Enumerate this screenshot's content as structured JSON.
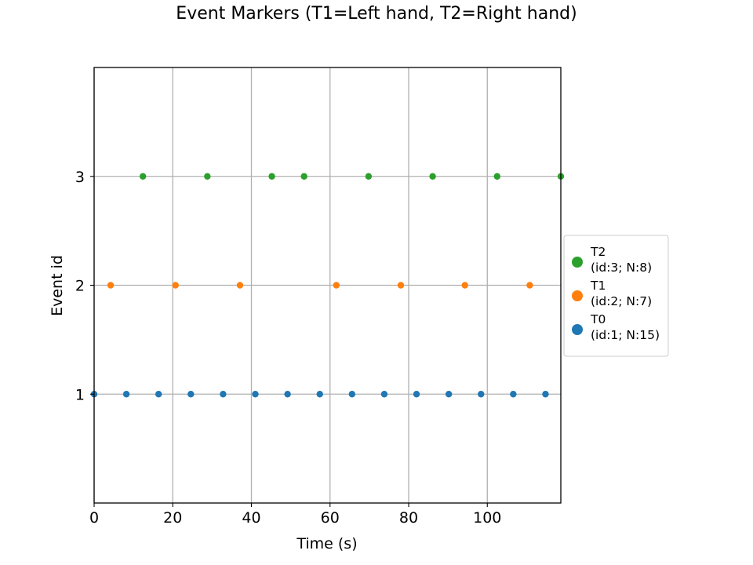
{
  "chart_data": {
    "type": "scatter",
    "title": "Event Markers (T1=Left hand, T2=Right hand)",
    "xlabel": "Time (s)",
    "ylabel": "Event id",
    "xlim": [
      0,
      118.7
    ],
    "ylim": [
      0,
      4
    ],
    "xticks": [
      0,
      20,
      40,
      60,
      80,
      100
    ],
    "yticks": [
      1,
      2,
      3
    ],
    "grid": true,
    "legend": {
      "placement": "outside-right",
      "entries": [
        {
          "label": "T2",
          "sublabel": "(id:3; N:8)",
          "color": "#2ca02c"
        },
        {
          "label": "T1",
          "sublabel": "(id:2; N:7)",
          "color": "#ff7f0e"
        },
        {
          "label": "T0",
          "sublabel": "(id:1; N:15)",
          "color": "#1f77b4"
        }
      ]
    },
    "series": [
      {
        "name": "T0",
        "event_id": 1,
        "color": "#1f77b4",
        "x": [
          0,
          8.2,
          16.4,
          24.6,
          32.8,
          41.0,
          49.2,
          57.4,
          65.6,
          73.8,
          82.0,
          90.2,
          98.4,
          106.6,
          114.8
        ],
        "y": [
          1,
          1,
          1,
          1,
          1,
          1,
          1,
          1,
          1,
          1,
          1,
          1,
          1,
          1,
          1
        ]
      },
      {
        "name": "T1",
        "event_id": 2,
        "color": "#ff7f0e",
        "x": [
          4.2,
          20.7,
          37.1,
          61.6,
          78.0,
          94.3,
          110.8
        ],
        "y": [
          2,
          2,
          2,
          2,
          2,
          2,
          2
        ]
      },
      {
        "name": "T2",
        "event_id": 3,
        "color": "#2ca02c",
        "x": [
          12.4,
          28.8,
          45.2,
          53.4,
          69.8,
          86.1,
          102.5,
          118.7
        ],
        "y": [
          3,
          3,
          3,
          3,
          3,
          3,
          3,
          3
        ]
      }
    ]
  }
}
